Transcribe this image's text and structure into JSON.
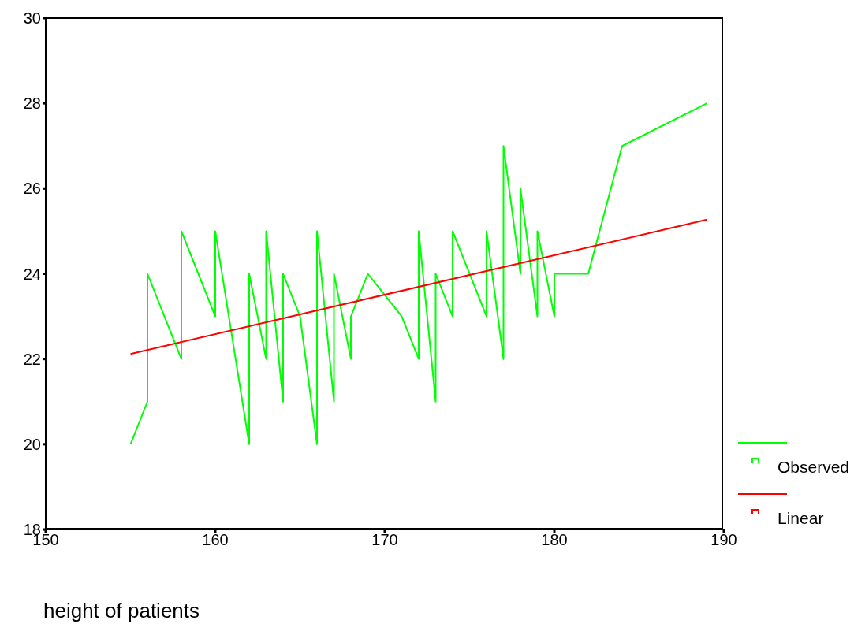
{
  "chart_data": {
    "type": "line",
    "xlabel": "height of patients",
    "xlim": [
      150,
      190
    ],
    "xticks": [
      150,
      160,
      170,
      180,
      190
    ],
    "ylim": [
      18,
      30
    ],
    "yticks": [
      18,
      20,
      22,
      24,
      26,
      28,
      30
    ],
    "grid": false,
    "legend": "right",
    "marker": "none",
    "line_style": "solid",
    "series": [
      {
        "name": "Observed",
        "color": "#00ff00",
        "x": [
          155,
          156,
          156,
          158,
          158,
          160,
          160,
          162,
          162,
          163,
          163,
          164,
          164,
          165,
          166,
          166,
          167,
          167,
          168,
          168,
          169,
          171,
          172,
          172,
          173,
          173,
          174,
          174,
          176,
          176,
          177,
          177,
          178,
          178,
          179,
          179,
          180,
          180,
          182,
          184,
          189
        ],
        "values": [
          20,
          21,
          24,
          22,
          25,
          23,
          25,
          20,
          24,
          22,
          25,
          21,
          24,
          23,
          20,
          25,
          21,
          24,
          22,
          23,
          24,
          23,
          22,
          25,
          21,
          24,
          23,
          25,
          23,
          25,
          22,
          27,
          24,
          26,
          23,
          25,
          23,
          24,
          24,
          27,
          28
        ]
      },
      {
        "name": "Linear",
        "color": "#ff0000",
        "x": [
          155,
          189
        ],
        "values": [
          22.12,
          25.27
        ]
      }
    ]
  }
}
